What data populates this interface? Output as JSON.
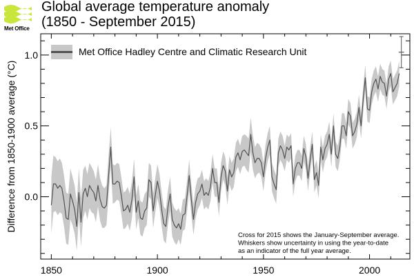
{
  "header": {
    "logo_text": "Met Office",
    "title_line1": "Global average temperature anomaly",
    "title_line2": "(1850 - September 2015)"
  },
  "colors": {
    "logo_green": "#c8e63c",
    "band": "#c8c8c8",
    "line": "#505050",
    "axis": "#000000"
  },
  "chart_data": {
    "type": "line",
    "title": "Global average temperature anomaly (1850 - September 2015)",
    "xlabel": "",
    "ylabel": "Difference from 1850-1900 average (°C)",
    "xlim": [
      1845,
      2019
    ],
    "ylim": [
      -0.44,
      1.15
    ],
    "x_ticks": [
      1850,
      1900,
      1950,
      2000
    ],
    "x_tick_labels": [
      "1850",
      "1900",
      "1950",
      "2000"
    ],
    "y_ticks": [
      0.0,
      0.5,
      1.0
    ],
    "y_tick_labels": [
      "0.0",
      "0.5",
      "1.0"
    ],
    "grid": false,
    "legend": {
      "position": "top-left",
      "entries": [
        "Met Office Hadley Centre and Climatic Research Unit"
      ]
    },
    "series": [
      {
        "name": "Met Office Hadley Centre and Climatic Research Unit",
        "x_start": 1850,
        "values": [
          -0.06,
          0.09,
          0.09,
          0.06,
          0.08,
          0.06,
          -0.03,
          -0.15,
          -0.16,
          0.02,
          -0.03,
          -0.09,
          -0.21,
          0.03,
          -0.18,
          0.02,
          0.06,
          0.0,
          0.08,
          0.05,
          0.03,
          -0.03,
          0.08,
          -0.02,
          -0.07,
          -0.08,
          -0.06,
          0.15,
          0.35,
          0.09,
          0.09,
          0.11,
          0.1,
          0.01,
          -0.1,
          -0.09,
          -0.06,
          -0.11,
          -0.02,
          0.14,
          -0.11,
          -0.03,
          -0.15,
          -0.16,
          -0.1,
          -0.08,
          0.12,
          0.1,
          -0.1,
          0.01,
          0.11,
          0.04,
          -0.09,
          -0.19,
          -0.21,
          -0.07,
          0.02,
          -0.16,
          -0.2,
          -0.22,
          -0.19,
          -0.23,
          -0.13,
          -0.12,
          0.01,
          0.15,
          -0.02,
          -0.16,
          -0.04,
          0.02,
          0.04,
          0.09,
          0.01,
          0.03,
          0.01,
          0.07,
          0.2,
          0.1,
          0.1,
          -0.04,
          0.14,
          0.22,
          0.18,
          0.04,
          0.19,
          0.14,
          0.17,
          0.28,
          0.31,
          0.26,
          0.32,
          0.33,
          0.31,
          0.29,
          0.44,
          0.31,
          0.24,
          0.27,
          0.27,
          0.24,
          0.14,
          0.27,
          0.35,
          0.4,
          0.14,
          0.09,
          0.05,
          0.31,
          0.36,
          0.33,
          0.27,
          0.35,
          0.33,
          0.36,
          0.09,
          0.2,
          0.24,
          0.24,
          0.2,
          0.34,
          0.28,
          0.13,
          0.26,
          0.37,
          0.12,
          0.17,
          0.08,
          0.35,
          0.26,
          0.34,
          0.37,
          0.44,
          0.3,
          0.5,
          0.3,
          0.27,
          0.35,
          0.5,
          0.5,
          0.43,
          0.6,
          0.57,
          0.43,
          0.46,
          0.51,
          0.63,
          0.5,
          0.69,
          0.84,
          0.62,
          0.61,
          0.74,
          0.8,
          0.83,
          0.76,
          0.85,
          0.81,
          0.8,
          0.71,
          0.83,
          0.87,
          0.74,
          0.77,
          0.8,
          0.87
        ],
        "uncertainty": [
          0.2,
          0.2,
          0.19,
          0.19,
          0.19,
          0.18,
          0.18,
          0.18,
          0.18,
          0.18,
          0.17,
          0.17,
          0.17,
          0.17,
          0.17,
          0.17,
          0.16,
          0.16,
          0.16,
          0.16,
          0.15,
          0.15,
          0.15,
          0.15,
          0.15,
          0.14,
          0.14,
          0.14,
          0.14,
          0.14,
          0.13,
          0.13,
          0.13,
          0.13,
          0.13,
          0.13,
          0.13,
          0.13,
          0.13,
          0.13,
          0.12,
          0.12,
          0.12,
          0.12,
          0.12,
          0.12,
          0.12,
          0.12,
          0.12,
          0.12,
          0.12,
          0.12,
          0.12,
          0.12,
          0.12,
          0.12,
          0.12,
          0.12,
          0.12,
          0.12,
          0.11,
          0.11,
          0.11,
          0.11,
          0.11,
          0.11,
          0.11,
          0.11,
          0.11,
          0.11,
          0.1,
          0.1,
          0.1,
          0.1,
          0.1,
          0.1,
          0.1,
          0.1,
          0.1,
          0.1,
          0.1,
          0.1,
          0.1,
          0.1,
          0.1,
          0.1,
          0.1,
          0.1,
          0.1,
          0.1,
          0.11,
          0.11,
          0.12,
          0.12,
          0.12,
          0.12,
          0.11,
          0.11,
          0.1,
          0.1,
          0.1,
          0.1,
          0.1,
          0.1,
          0.1,
          0.1,
          0.1,
          0.1,
          0.1,
          0.1,
          0.09,
          0.09,
          0.09,
          0.09,
          0.09,
          0.09,
          0.09,
          0.09,
          0.09,
          0.09,
          0.09,
          0.09,
          0.09,
          0.09,
          0.09,
          0.09,
          0.09,
          0.09,
          0.09,
          0.09,
          0.09,
          0.09,
          0.09,
          0.09,
          0.09,
          0.09,
          0.09,
          0.09,
          0.09,
          0.09,
          0.09,
          0.09,
          0.09,
          0.09,
          0.09,
          0.09,
          0.09,
          0.09,
          0.09,
          0.09,
          0.09,
          0.09,
          0.09,
          0.09,
          0.09,
          0.09,
          0.09,
          0.09,
          0.09,
          0.09,
          0.09,
          0.09,
          0.09,
          0.09,
          0.09
        ]
      }
    ],
    "cross_2015": {
      "year": 2015,
      "value": 1.02,
      "whisker_low": 0.91,
      "whisker_high": 1.13
    },
    "annotation": [
      "Cross for 2015 shows the January-September average.",
      "Whiskers show uncertainty in using the year-to-date",
      "as an indicator of the full year average."
    ]
  }
}
